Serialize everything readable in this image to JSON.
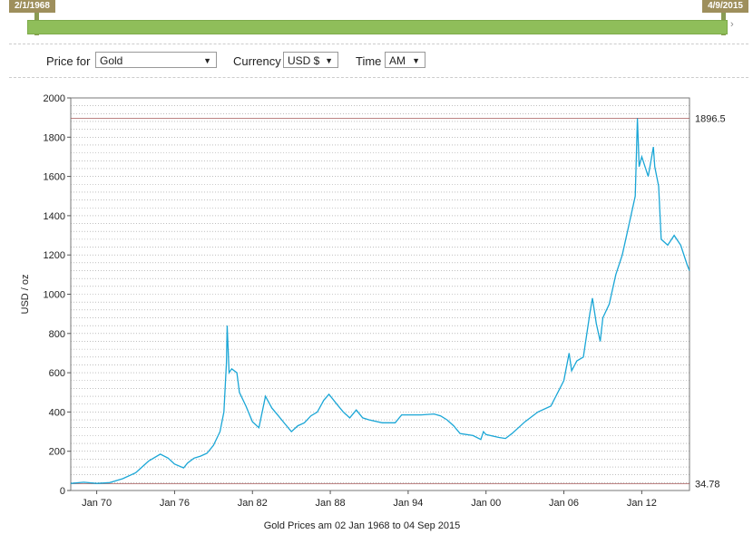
{
  "range_slider": {
    "start_label": "2/1/1968",
    "end_label": "4/9/2015",
    "left_arrow": "‹",
    "right_arrow": "›",
    "track_color": "#8fbe5a",
    "flag_color": "#9e8f5c"
  },
  "controls": {
    "price_for": {
      "label": "Price for",
      "value": "Gold"
    },
    "currency": {
      "label": "Currency",
      "value": "USD $"
    },
    "time": {
      "label": "Time",
      "value": "AM"
    },
    "caret": "▼"
  },
  "colors": {
    "line": "#1aa6d6",
    "reference_line": "#a65a5a",
    "grid": "#999999"
  },
  "chart_data": {
    "type": "line",
    "ylabel": "USD / oz",
    "xlabel": "Gold Prices am 02 Jan 1968 to 04 Sep 2015",
    "ylim": [
      0,
      2000
    ],
    "yticks": [
      0,
      200,
      400,
      600,
      800,
      1000,
      1200,
      1400,
      1600,
      1800,
      2000
    ],
    "xlim": [
      1968.0,
      2015.68
    ],
    "xticks": [
      {
        "label": "Jan 70",
        "x": 1970
      },
      {
        "label": "Jan 76",
        "x": 1976
      },
      {
        "label": "Jan 82",
        "x": 1982
      },
      {
        "label": "Jan 88",
        "x": 1988
      },
      {
        "label": "Jan 94",
        "x": 1994
      },
      {
        "label": "Jan 00",
        "x": 2000
      },
      {
        "label": "Jan 06",
        "x": 2006
      },
      {
        "label": "Jan 12",
        "x": 2012
      }
    ],
    "grid": true,
    "reference_lines": [
      {
        "label": "1896.5",
        "value": 1896.5
      },
      {
        "label": "34.78",
        "value": 34.78
      }
    ],
    "series": [
      {
        "x": [
          1968.0,
          1969.0,
          1970.0,
          1971.0,
          1972.0,
          1973.0,
          1973.5,
          1974.0,
          1974.9,
          1975.5,
          1976.0,
          1976.7,
          1977.0,
          1977.5,
          1978.0,
          1978.5,
          1979.0,
          1979.5,
          1979.8,
          1980.0,
          1980.05,
          1980.2,
          1980.4,
          1980.8,
          1981.0,
          1981.5,
          1982.0,
          1982.5,
          1983.0,
          1983.5,
          1984.0,
          1984.5,
          1985.0,
          1985.5,
          1986.0,
          1986.5,
          1987.0,
          1987.5,
          1987.9,
          1988.5,
          1989.0,
          1989.5,
          1990.0,
          1990.5,
          1991.0,
          1992.0,
          1993.0,
          1993.5,
          1994.0,
          1995.0,
          1996.0,
          1996.5,
          1997.0,
          1997.5,
          1998.0,
          1999.0,
          1999.6,
          1999.8,
          2000.0,
          2001.0,
          2001.5,
          2002.0,
          2002.5,
          2003.0,
          2004.0,
          2005.0,
          2006.0,
          2006.4,
          2006.6,
          2007.0,
          2007.5,
          2008.0,
          2008.2,
          2008.5,
          2008.8,
          2009.0,
          2009.5,
          2010.0,
          2010.5,
          2011.0,
          2011.5,
          2011.67,
          2011.8,
          2012.0,
          2012.5,
          2012.9,
          2013.0,
          2013.3,
          2013.5,
          2014.0,
          2014.5,
          2015.0,
          2015.5,
          2015.68
        ],
        "values": [
          36,
          42,
          36,
          40,
          60,
          90,
          120,
          150,
          185,
          165,
          135,
          115,
          140,
          165,
          175,
          190,
          230,
          300,
          400,
          650,
          840,
          600,
          620,
          600,
          500,
          430,
          350,
          320,
          480,
          420,
          380,
          340,
          300,
          330,
          345,
          380,
          400,
          460,
          490,
          440,
          400,
          370,
          410,
          370,
          360,
          345,
          345,
          385,
          385,
          385,
          390,
          380,
          360,
          330,
          290,
          280,
          260,
          300,
          285,
          270,
          265,
          290,
          320,
          350,
          400,
          430,
          560,
          700,
          610,
          660,
          680,
          900,
          980,
          850,
          760,
          880,
          950,
          1100,
          1200,
          1350,
          1500,
          1896,
          1650,
          1700,
          1600,
          1750,
          1650,
          1550,
          1280,
          1250,
          1300,
          1250,
          1150,
          1120
        ]
      }
    ]
  }
}
